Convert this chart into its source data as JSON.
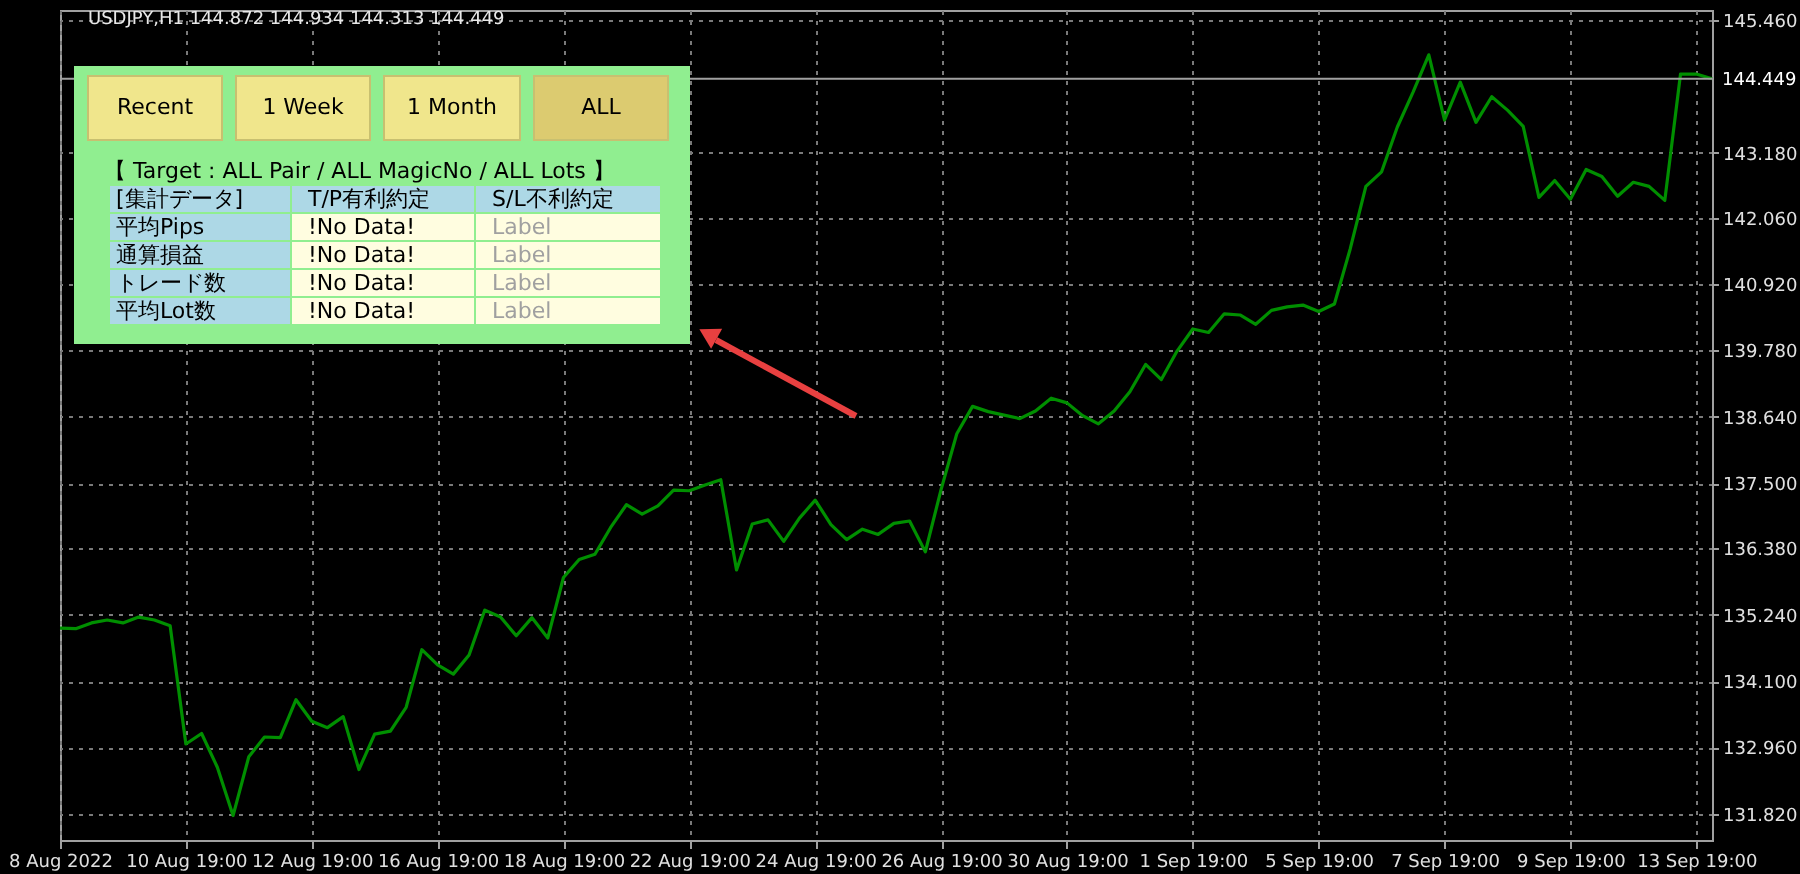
{
  "chart_data": {
    "type": "line",
    "title": "USDJPY,H1  144.872 144.934 144.313 144.449",
    "categories": [
      "8 Aug 2022",
      null,
      null,
      null,
      null,
      null,
      null,
      null,
      "10 Aug 19:00",
      null,
      null,
      null,
      null,
      null,
      null,
      null,
      "12 Aug 19:00",
      null,
      null,
      null,
      null,
      null,
      null,
      null,
      "16 Aug 19:00",
      null,
      null,
      null,
      null,
      null,
      null,
      null,
      "18 Aug 19:00",
      null,
      null,
      null,
      null,
      null,
      null,
      null,
      "22 Aug 19:00",
      null,
      null,
      null,
      null,
      null,
      null,
      null,
      "24 Aug 19:00",
      null,
      null,
      null,
      null,
      null,
      null,
      null,
      "26 Aug 19:00",
      null,
      null,
      null,
      null,
      null,
      null,
      null,
      "30 Aug 19:00",
      null,
      null,
      null,
      null,
      null,
      null,
      null,
      "1 Sep 19:00",
      null,
      null,
      null,
      null,
      null,
      null,
      null,
      "5 Sep 19:00",
      null,
      null,
      null,
      null,
      null,
      null,
      null,
      "7 Sep 19:00",
      null,
      null,
      null,
      null,
      null,
      null,
      null,
      "9 Sep 19:00",
      null,
      null,
      null,
      null,
      null,
      null,
      null,
      "13 Sep 19:00",
      null
    ],
    "series": [
      {
        "color": "#008f00",
        "values": [
          135.01,
          135.0,
          135.1,
          135.15,
          135.1,
          135.2,
          135.15,
          135.05,
          133.02,
          133.2,
          132.62,
          131.79,
          132.8,
          133.14,
          133.13,
          133.78,
          133.41,
          133.3,
          133.49,
          132.58,
          133.19,
          133.24,
          133.65,
          134.64,
          134.38,
          134.22,
          134.55,
          135.32,
          135.2,
          134.88,
          135.19,
          134.84,
          135.88,
          136.19,
          136.28,
          136.74,
          137.13,
          136.97,
          137.11,
          137.38,
          137.37,
          137.47,
          137.56,
          136.01,
          136.8,
          136.87,
          136.5,
          136.9,
          137.21,
          136.79,
          136.53,
          136.71,
          136.62,
          136.81,
          136.85,
          136.32,
          137.39,
          138.35,
          138.82,
          138.73,
          138.67,
          138.61,
          138.74,
          138.96,
          138.88,
          138.66,
          138.52,
          138.74,
          139.07,
          139.54,
          139.28,
          139.77,
          140.15,
          140.09,
          140.41,
          140.39,
          140.23,
          140.47,
          140.53,
          140.56,
          140.45,
          140.58,
          141.52,
          142.6,
          142.85,
          143.62,
          144.22,
          144.86,
          143.74,
          144.39,
          143.7,
          144.14,
          143.91,
          143.63,
          142.41,
          142.7,
          142.38,
          142.89,
          142.77,
          142.43,
          142.67,
          142.6,
          142.36,
          144.53,
          144.53,
          144.45
        ]
      }
    ],
    "ylim": [
      131.37,
      145.63
    ],
    "yticks": [
      {
        "value": 131.82,
        "label": "131.820"
      },
      {
        "value": 132.96,
        "label": "132.960"
      },
      {
        "value": 134.1,
        "label": "134.100"
      },
      {
        "value": 135.24,
        "label": "135.240"
      },
      {
        "value": 136.38,
        "label": "136.380"
      },
      {
        "value": 137.5,
        "label": "137.500"
      },
      {
        "value": 138.64,
        "label": "138.640"
      },
      {
        "value": 139.78,
        "label": "139.780"
      },
      {
        "value": 140.92,
        "label": "140.920"
      },
      {
        "value": 142.06,
        "label": "142.060"
      },
      {
        "value": 143.18,
        "label": "143.180"
      },
      {
        "value": 145.46,
        "label": "145.460"
      }
    ],
    "ref_lines": [
      {
        "axis": "y",
        "value": 144.449,
        "label": "144.449",
        "color": "#a0a0a0"
      }
    ],
    "grid": true,
    "annotations": [
      "Recent",
      "1 Week",
      "1 Month",
      "ALL",
      "【 Target : ALL Pair / ALL MagicNo / ALL Lots 】",
      "[集計データ]",
      "T/P有利約定",
      "S/L不利約定",
      "平均Pips",
      "!No Data!",
      "Label",
      "通算損益",
      "!No Data!",
      "Label",
      "トレード数",
      "!No Data!",
      "Label",
      "平均Lot数",
      "!No Data!",
      "Label"
    ]
  }
}
